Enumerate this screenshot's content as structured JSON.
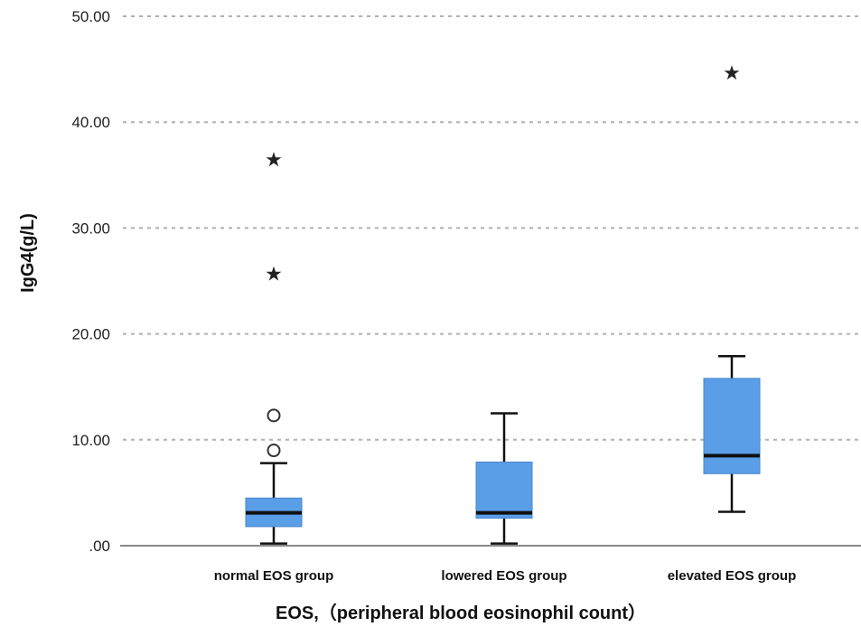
{
  "chart_data": {
    "type": "boxplot",
    "title": "",
    "xlabel": "EOS,（peripheral blood eosinophil count）",
    "ylabel": "IgG4(g/L)",
    "ylim": [
      0,
      50
    ],
    "yticks": [
      0,
      10,
      20,
      30,
      40,
      50
    ],
    "ytick_labels": [
      ".00",
      "10.00",
      "20.00",
      "30.00",
      "40.00",
      "50.00"
    ],
    "grid": true,
    "colors": {
      "box": "#5a9ee8",
      "median": "#111111",
      "grid": "#b0b0b0",
      "axis": "#888888"
    },
    "categories": [
      "normal EOS group",
      "lowered EOS group",
      "elevated EOS group"
    ],
    "boxes": [
      {
        "whisker_low": 0.2,
        "q1": 1.8,
        "median": 3.1,
        "q3": 4.5,
        "whisker_high": 7.8,
        "outliers": [
          9.0,
          12.3
        ],
        "extremes": [
          25.8,
          36.6
        ]
      },
      {
        "whisker_low": 0.2,
        "q1": 2.6,
        "median": 3.1,
        "q3": 7.9,
        "whisker_high": 12.5,
        "outliers": [],
        "extremes": []
      },
      {
        "whisker_low": 3.2,
        "q1": 6.8,
        "median": 8.5,
        "q3": 15.8,
        "whisker_high": 17.9,
        "outliers": [],
        "extremes": [
          44.8
        ]
      }
    ]
  }
}
